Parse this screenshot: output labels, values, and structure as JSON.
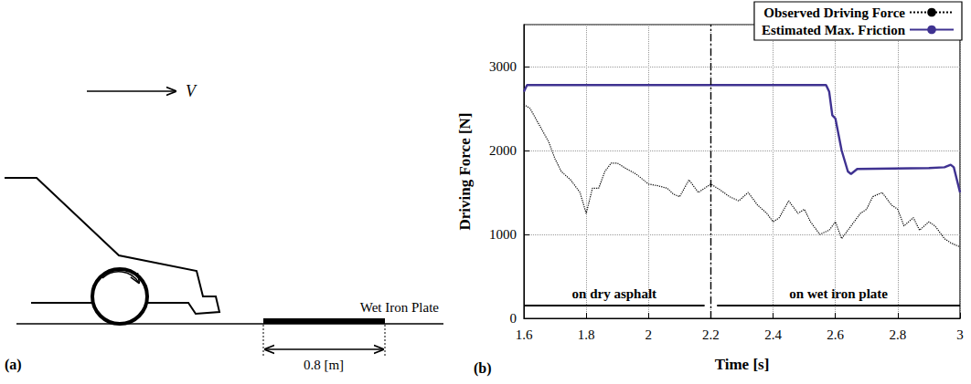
{
  "diagram": {
    "panel": "(a)",
    "velocity_label": "V",
    "plate_label": "Wet Iron Plate",
    "plate_length_label": "0.8 [m]"
  },
  "chart_data": {
    "type": "line",
    "panel": "(b)",
    "x_label": "Time [s]",
    "y_label": "Driving Force [N]",
    "xlim": [
      1.6,
      3
    ],
    "xticks": [
      1.6,
      1.8,
      2,
      2.2,
      2.4,
      2.6,
      2.8,
      3
    ],
    "ylim": [
      0,
      3500
    ],
    "yticks": [
      0,
      1000,
      2000,
      3000
    ],
    "grid": true,
    "legend": "top-right",
    "series": [
      {
        "name": "Observed Driving Force",
        "color": "#000000",
        "line_style": "dotted",
        "x": [
          1.6,
          1.62,
          1.65,
          1.68,
          1.7,
          1.72,
          1.75,
          1.78,
          1.8,
          1.82,
          1.84,
          1.86,
          1.88,
          1.9,
          1.93,
          1.96,
          2.0,
          2.03,
          2.06,
          2.08,
          2.1,
          2.13,
          2.16,
          2.2,
          2.23,
          2.26,
          2.29,
          2.32,
          2.35,
          2.38,
          2.4,
          2.42,
          2.45,
          2.48,
          2.5,
          2.52,
          2.55,
          2.58,
          2.6,
          2.62,
          2.65,
          2.68,
          2.7,
          2.72,
          2.75,
          2.78,
          2.8,
          2.82,
          2.85,
          2.87,
          2.9,
          2.92,
          2.95,
          2.97,
          3.0
        ],
        "values": [
          2550,
          2500,
          2300,
          2100,
          1900,
          1750,
          1650,
          1500,
          1250,
          1550,
          1550,
          1750,
          1850,
          1850,
          1780,
          1720,
          1600,
          1580,
          1550,
          1480,
          1450,
          1650,
          1500,
          1600,
          1530,
          1450,
          1400,
          1500,
          1350,
          1250,
          1150,
          1200,
          1400,
          1250,
          1300,
          1150,
          1000,
          1050,
          1150,
          950,
          1100,
          1250,
          1300,
          1450,
          1500,
          1350,
          1300,
          1100,
          1200,
          1050,
          1150,
          1100,
          950,
          900,
          850
        ]
      },
      {
        "name": "Estimated Max. Friction",
        "color": "#3f3291",
        "line_style": "solid",
        "x": [
          1.6,
          1.61,
          2.57,
          2.58,
          2.59,
          2.6,
          2.62,
          2.64,
          2.65,
          2.67,
          2.9,
          2.95,
          2.97,
          2.98,
          3.0
        ],
        "values": [
          2700,
          2780,
          2780,
          2700,
          2420,
          2380,
          2000,
          1750,
          1720,
          1780,
          1790,
          1800,
          1830,
          1800,
          1500
        ]
      }
    ],
    "boundary_x": 2.2,
    "annotations": [
      {
        "text": "on dry asphalt",
        "x_from": 1.6,
        "x_to": 2.18,
        "y": 150
      },
      {
        "text": "on wet iron plate",
        "x_from": 3.0,
        "x_to": 2.22,
        "y": 150
      }
    ]
  }
}
